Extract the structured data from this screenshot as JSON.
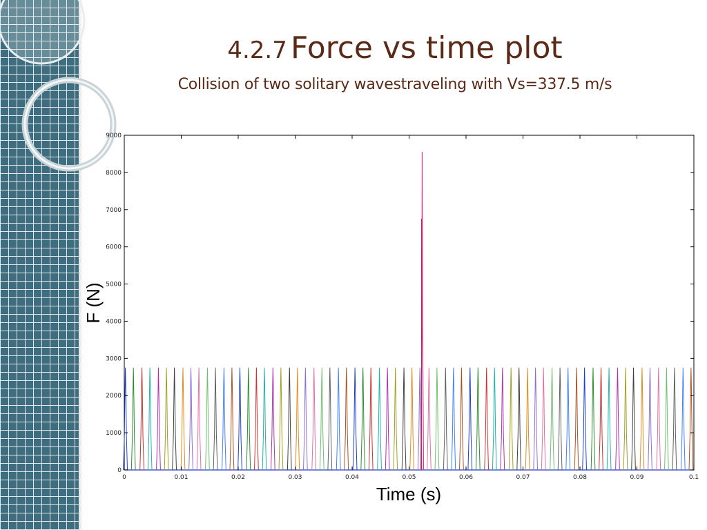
{
  "slide": {
    "title_number": "4.2.7",
    "title_main": "Force vs time plot",
    "subtitle": "Collision of two solitary wavestraveling with Vs=337.5 m/s"
  },
  "colors": {
    "title": "#5a2a17",
    "sidebar": "#3d6d7e",
    "series": [
      "#1f3fcf",
      "#2e8b2e",
      "#d23030",
      "#20b2aa",
      "#b030b0",
      "#a0a020",
      "#404040",
      "#e08a1e",
      "#8a6fd6",
      "#e070a0",
      "#6fbf6f",
      "#606060",
      "#4080ff",
      "#b05020"
    ],
    "peak": "#e0308a"
  },
  "chart_data": {
    "type": "line",
    "xlabel": "Time (s)",
    "ylabel": "F (N)",
    "xlim": [
      0,
      0.1
    ],
    "ylim": [
      0,
      9000
    ],
    "xticks": [
      0,
      0.01,
      0.02,
      0.03,
      0.04,
      0.05,
      0.06,
      0.07,
      0.08,
      0.09,
      0.1
    ],
    "xtick_labels": [
      "0",
      "0.01",
      "0.02",
      "0.03",
      "0.04",
      "0.05",
      "0.06",
      "0.07",
      "0.08",
      "0.09",
      "0.1"
    ],
    "yticks": [
      0,
      1000,
      2000,
      3000,
      4000,
      5000,
      6000,
      7000,
      8000,
      9000
    ],
    "ytick_labels": [
      "0",
      "1000",
      "2000",
      "3000",
      "4000",
      "5000",
      "6000",
      "7000",
      "8000",
      "9000"
    ],
    "grid": false,
    "legend": false,
    "pulse": {
      "peak_force": 2750,
      "half_width": 0.00035
    },
    "pulse_times": [
      0.0002,
      0.0016,
      0.0031,
      0.0045,
      0.006,
      0.0074,
      0.0088,
      0.0103,
      0.0117,
      0.0131,
      0.0146,
      0.016,
      0.0175,
      0.0189,
      0.0203,
      0.0218,
      0.0232,
      0.0246,
      0.0261,
      0.0275,
      0.029,
      0.0304,
      0.0318,
      0.0333,
      0.0347,
      0.0361,
      0.0376,
      0.039,
      0.0405,
      0.0419,
      0.0433,
      0.0448,
      0.0462,
      0.0476,
      0.0491,
      0.0505,
      0.0519,
      0.0535,
      0.0549,
      0.0564,
      0.0578,
      0.0592,
      0.0607,
      0.0621,
      0.0636,
      0.065,
      0.0664,
      0.0679,
      0.0693,
      0.0708,
      0.0722,
      0.0736,
      0.0751,
      0.0765,
      0.0779,
      0.0794,
      0.0808,
      0.0823,
      0.0837,
      0.0851,
      0.0866,
      0.088,
      0.0894,
      0.0909,
      0.0923,
      0.0938,
      0.0952,
      0.0966,
      0.0981,
      0.0995
    ],
    "collision": {
      "time": 0.0523,
      "peak_force": 8550
    }
  }
}
